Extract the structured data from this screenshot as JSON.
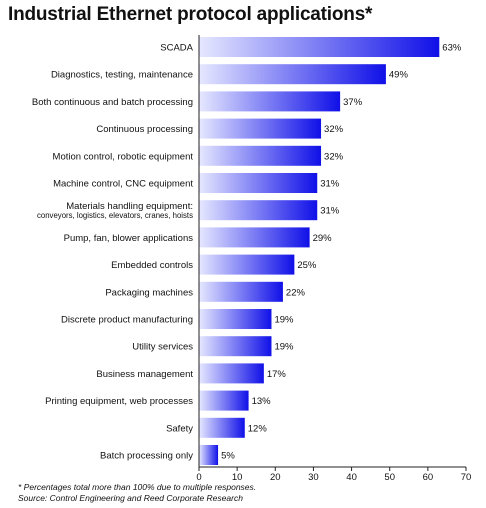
{
  "title": "Industrial Ethernet protocol applications*",
  "footnote": "* Percentages total more than 100% due to multiple responses.",
  "source_label": "Source:",
  "source_text": "Control Engineering and Reed Corporate Research",
  "colors": {
    "bar_light": "#e6e8ff",
    "bar_dark": "#1010e8",
    "axis": "#222222"
  },
  "chart_data": {
    "type": "bar",
    "orientation": "horizontal",
    "title": "Industrial Ethernet protocol applications*",
    "xlim": [
      0,
      70
    ],
    "xticks": [
      0,
      10,
      20,
      30,
      40,
      50,
      60,
      70
    ],
    "grid": false,
    "value_suffix": "%",
    "categories": [
      [
        "SCADA"
      ],
      [
        "Diagnostics, testing, maintenance"
      ],
      [
        "Both continuous and batch processing"
      ],
      [
        "Continuous processing"
      ],
      [
        "Motion control, robotic equipment"
      ],
      [
        "Machine control, CNC equipment"
      ],
      [
        "Materials handling equipment:",
        "conveyors, logistics, elevators, cranes, hoists"
      ],
      [
        "Pump, fan, blower applications"
      ],
      [
        "Embedded controls"
      ],
      [
        "Packaging machines"
      ],
      [
        "Discrete product manufacturing"
      ],
      [
        "Utility services"
      ],
      [
        "Business management"
      ],
      [
        "Printing equipment, web processes"
      ],
      [
        "Safety"
      ],
      [
        "Batch processing only"
      ]
    ],
    "values": [
      63,
      49,
      37,
      32,
      32,
      31,
      31,
      29,
      25,
      22,
      19,
      19,
      17,
      13,
      12,
      5
    ],
    "value_labels": [
      "63%",
      "49%",
      "37%",
      "32%",
      "32%",
      "31%",
      "31%",
      "29%",
      "25%",
      "22%",
      "19%",
      "19%",
      "17%",
      "13%",
      "12%",
      "5%"
    ]
  }
}
